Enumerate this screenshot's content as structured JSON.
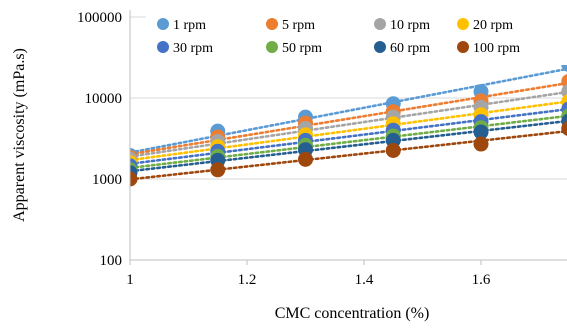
{
  "chart_data": {
    "type": "scatter",
    "xlabel": "CMC concentration (%)",
    "ylabel": "Apparent viscosity (mPa.s)",
    "y_scale": "log",
    "ylim": [
      100,
      100000
    ],
    "xlim": [
      1,
      1.75
    ],
    "x_ticks": [
      "1",
      "1.2",
      "1.4",
      "1.6"
    ],
    "y_ticks": [
      "100",
      "1000",
      "10000",
      "100000"
    ],
    "x": [
      1,
      1.15,
      1.3,
      1.45,
      1.6,
      1.75
    ],
    "legend_position": "top",
    "trendline": "exponential, dotted",
    "series": [
      {
        "name": "1 rpm",
        "color": "#5b9bd5",
        "values": [
          1950,
          3900,
          5800,
          8500,
          12000,
          26000
        ]
      },
      {
        "name": "5 rpm",
        "color": "#ed7d31",
        "values": [
          1850,
          3300,
          4900,
          6800,
          9200,
          16000
        ]
      },
      {
        "name": "10 rpm",
        "color": "#a5a5a5",
        "values": [
          1750,
          2900,
          4200,
          5800,
          7700,
          12000
        ]
      },
      {
        "name": "20 rpm",
        "color": "#ffc000",
        "values": [
          1600,
          2500,
          3500,
          4800,
          6200,
          9000
        ]
      },
      {
        "name": "30 rpm",
        "color": "#4472c4",
        "values": [
          1450,
          2200,
          3000,
          4000,
          5100,
          7300
        ]
      },
      {
        "name": "50 rpm",
        "color": "#70ad47",
        "values": [
          1300,
          1900,
          2600,
          3400,
          4300,
          6000
        ]
      },
      {
        "name": "60 rpm",
        "color": "#255e91",
        "values": [
          1200,
          1700,
          2300,
          3000,
          3800,
          5200
        ]
      },
      {
        "name": "100 rpm",
        "color": "#9e480e",
        "values": [
          1000,
          1300,
          1750,
          2250,
          2700,
          4200
        ]
      }
    ]
  }
}
